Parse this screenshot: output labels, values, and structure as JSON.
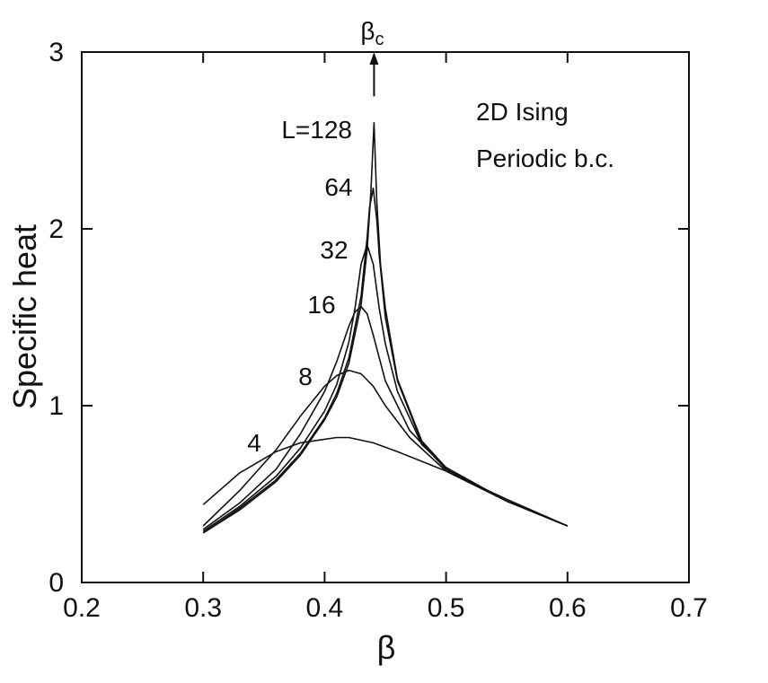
{
  "chart_data": {
    "type": "line",
    "xlabel": "β",
    "ylabel": "Specific heat",
    "xlim": [
      0.2,
      0.7
    ],
    "ylim": [
      0,
      3
    ],
    "xticks": [
      0.2,
      0.3,
      0.4,
      0.5,
      0.6,
      0.7
    ],
    "xtick_labels": [
      "0.2",
      "0.3",
      "0.4",
      "0.5",
      "0.6",
      "0.7"
    ],
    "yticks": [
      0,
      1,
      2,
      3
    ],
    "ytick_labels": [
      "0",
      "1",
      "2",
      "3"
    ],
    "grid": false,
    "legend": "none",
    "annotations": {
      "line1": "2D Ising",
      "line2": "Periodic b.c.",
      "critical_marker": {
        "base": "β",
        "subscript": "c",
        "x": 0.4407,
        "y_from": 2.75,
        "y_to": 3.0
      }
    },
    "series": [
      {
        "label": "4",
        "x": [
          0.3,
          0.33,
          0.36,
          0.38,
          0.4,
          0.41,
          0.42,
          0.44,
          0.46,
          0.5,
          0.55,
          0.6
        ],
        "y": [
          0.44,
          0.62,
          0.74,
          0.79,
          0.81,
          0.82,
          0.82,
          0.79,
          0.74,
          0.63,
          0.47,
          0.32
        ]
      },
      {
        "label": "8",
        "x": [
          0.3,
          0.33,
          0.36,
          0.38,
          0.4,
          0.41,
          0.42,
          0.43,
          0.44,
          0.45,
          0.47,
          0.5,
          0.55,
          0.6
        ],
        "y": [
          0.32,
          0.52,
          0.75,
          0.94,
          1.11,
          1.17,
          1.2,
          1.18,
          1.11,
          1.0,
          0.82,
          0.63,
          0.46,
          0.32
        ]
      },
      {
        "label": "16",
        "x": [
          0.3,
          0.33,
          0.36,
          0.38,
          0.4,
          0.41,
          0.42,
          0.425,
          0.43,
          0.435,
          0.44,
          0.45,
          0.47,
          0.5,
          0.55,
          0.6
        ],
        "y": [
          0.3,
          0.45,
          0.64,
          0.84,
          1.08,
          1.25,
          1.45,
          1.53,
          1.56,
          1.52,
          1.4,
          1.14,
          0.86,
          0.64,
          0.46,
          0.32
        ]
      },
      {
        "label": "32",
        "x": [
          0.3,
          0.33,
          0.36,
          0.38,
          0.4,
          0.41,
          0.42,
          0.425,
          0.43,
          0.435,
          0.44,
          0.445,
          0.45,
          0.46,
          0.48,
          0.5,
          0.55,
          0.6
        ],
        "y": [
          0.29,
          0.43,
          0.6,
          0.76,
          0.97,
          1.12,
          1.36,
          1.55,
          1.8,
          1.91,
          1.8,
          1.55,
          1.35,
          1.08,
          0.78,
          0.65,
          0.46,
          0.32
        ]
      },
      {
        "label": "64",
        "x": [
          0.3,
          0.33,
          0.36,
          0.38,
          0.4,
          0.41,
          0.42,
          0.43,
          0.435,
          0.437,
          0.44,
          0.443,
          0.445,
          0.45,
          0.46,
          0.48,
          0.5,
          0.55,
          0.6
        ],
        "y": [
          0.28,
          0.42,
          0.58,
          0.73,
          0.93,
          1.07,
          1.27,
          1.62,
          1.95,
          2.12,
          2.23,
          2.05,
          1.85,
          1.5,
          1.14,
          0.79,
          0.65,
          0.46,
          0.32
        ]
      },
      {
        "label": "L=128",
        "x": [
          0.3,
          0.33,
          0.36,
          0.38,
          0.4,
          0.41,
          0.42,
          0.43,
          0.435,
          0.438,
          0.4407,
          0.443,
          0.446,
          0.45,
          0.46,
          0.48,
          0.5,
          0.55,
          0.6
        ],
        "y": [
          0.28,
          0.41,
          0.57,
          0.72,
          0.92,
          1.05,
          1.24,
          1.57,
          1.88,
          2.2,
          2.6,
          2.15,
          1.8,
          1.55,
          1.15,
          0.8,
          0.65,
          0.46,
          0.32
        ]
      }
    ]
  }
}
